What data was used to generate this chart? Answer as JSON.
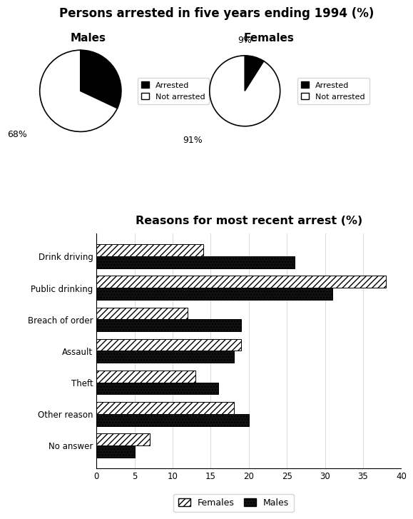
{
  "main_title": "Persons arrested in five years ending 1994 (%)",
  "pie_males_title": "Males",
  "pie_females_title": "Females",
  "males_arrested": 32,
  "males_not_arrested": 68,
  "females_arrested": 9,
  "females_not_arrested": 91,
  "pie_labels_arrested": "Arrested",
  "pie_labels_not": "Not arrested",
  "bar_title": "Reasons for most recent arrest (%)",
  "bar_categories": [
    "Drink driving",
    "Public drinking",
    "Breach of order",
    "Assault",
    "Theft",
    "Other reason",
    "No answer"
  ],
  "bar_males": [
    26,
    31,
    19,
    18,
    16,
    20,
    5
  ],
  "bar_females": [
    14,
    38,
    12,
    19,
    13,
    18,
    7
  ],
  "bar_xlim": [
    0,
    40
  ],
  "bar_xticks": [
    0,
    5,
    10,
    15,
    20,
    25,
    30,
    35,
    40
  ],
  "color_arrested": "#000000",
  "color_not_arrested": "#ffffff",
  "bar_legend_females": "Females",
  "bar_legend_males": "Males"
}
